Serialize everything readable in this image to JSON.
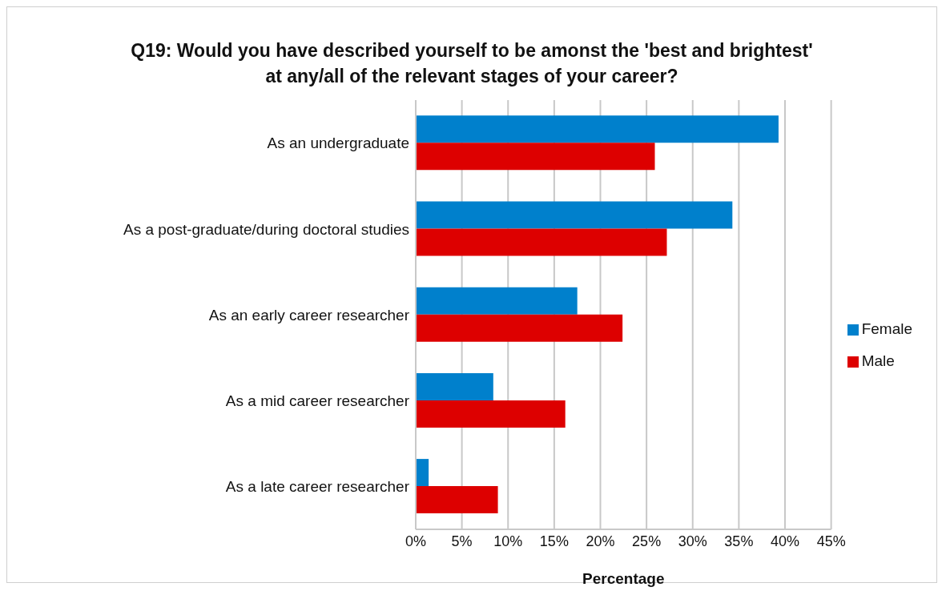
{
  "chart_data": {
    "type": "bar",
    "orientation": "horizontal",
    "title": "Q19: Would you have described yourself to be amonst the 'best and brightest' at any/all of the relevant stages of your career?",
    "xlabel": "Percentage",
    "categories": [
      "As an undergraduate",
      "As a post-graduate/during doctoral studies",
      "As an early career researcher",
      "As a mid career researcher",
      "As a late career researcher"
    ],
    "series": [
      {
        "name": "Female",
        "color": "#0080cc",
        "values": [
          39.3,
          34.3,
          17.5,
          8.4,
          1.4
        ]
      },
      {
        "name": "Male",
        "color": "#dd0000",
        "values": [
          25.9,
          27.2,
          22.4,
          16.2,
          8.9
        ]
      }
    ],
    "xlim": [
      0,
      45
    ],
    "xticks": [
      {
        "value": 0,
        "label": "0%"
      },
      {
        "value": 5,
        "label": "5%"
      },
      {
        "value": 10,
        "label": "10%"
      },
      {
        "value": 15,
        "label": "15%"
      },
      {
        "value": 20,
        "label": "20%"
      },
      {
        "value": 25,
        "label": "25%"
      },
      {
        "value": 30,
        "label": "30%"
      },
      {
        "value": 35,
        "label": "35%"
      },
      {
        "value": 40,
        "label": "40%"
      },
      {
        "value": 45,
        "label": "45%"
      }
    ],
    "grid": "x",
    "legend": "right"
  }
}
